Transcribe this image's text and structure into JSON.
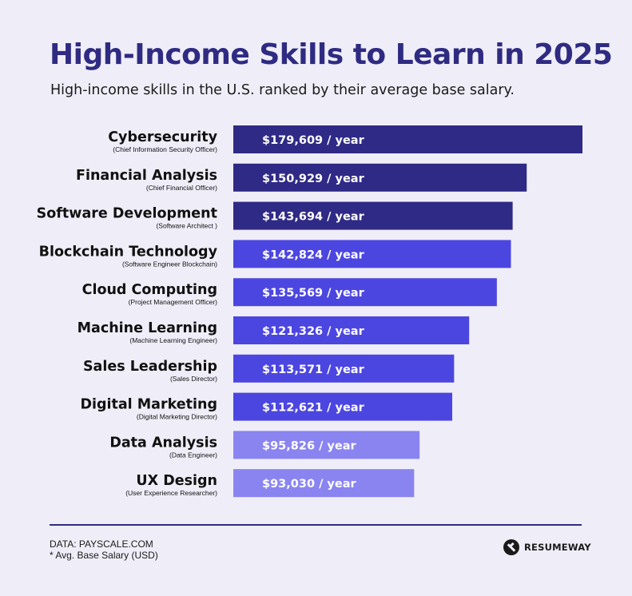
{
  "title": "High-Income Skills to Learn in 2025",
  "subtitle": "High-income skills in the U.S. ranked by their average base salary.",
  "chart_data": {
    "type": "bar",
    "orientation": "horizontal",
    "categories": [
      "Cybersecurity",
      "Financial Analysis",
      "Software Development",
      "Blockchain Technology",
      "Cloud Computing",
      "Machine Learning",
      "Sales Leadership",
      "Digital Marketing",
      "Data Analysis",
      "UX Design"
    ],
    "subcategories": [
      "(Chief Information Security Officer)",
      "(Chief Financial Officer)",
      "(Software Architect )",
      "(Software Engineer Blockchain)",
      "(Project Management Officer)",
      "(Machine Learning Engineer)",
      "(Sales Director)",
      "(Digital Marketing Director)",
      "(Data Engineer)",
      "(User Experience Researcher)"
    ],
    "values": [
      179609,
      150929,
      143694,
      142824,
      135569,
      121326,
      113571,
      112621,
      95826,
      93030
    ],
    "value_labels": [
      "$179,609 / year",
      "$150,929 / year",
      "$143,694 / year",
      "$142,824 / year",
      "$135,569 / year",
      "$121,326 / year",
      "$113,571 / year",
      "$112,621 / year",
      "$95,826 / year",
      "$93,030 / year"
    ],
    "bar_colors": [
      "#2f2a85",
      "#2f2a85",
      "#2f2a85",
      "#4c46e0",
      "#4c46e0",
      "#4c46e0",
      "#4c46e0",
      "#4c46e0",
      "#8a84f0",
      "#8a84f0"
    ],
    "grid": false,
    "legend": "none"
  },
  "footer": {
    "source": "DATA: PAYSCALE.COM",
    "note": "* Avg. Base Salary (USD)",
    "brand": "RESUMEWAY"
  }
}
